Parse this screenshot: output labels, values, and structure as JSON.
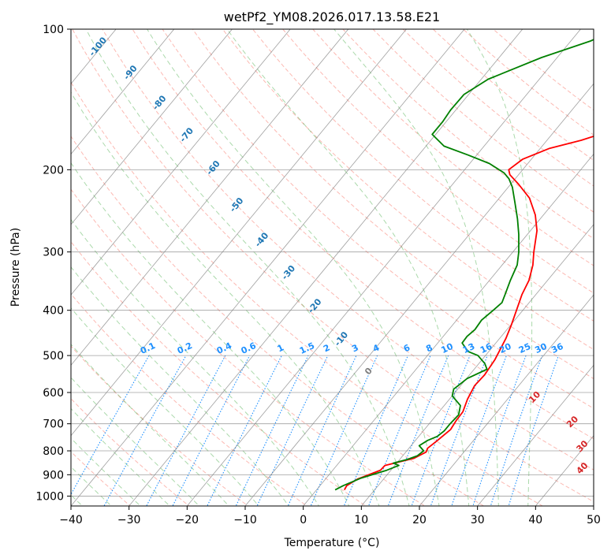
{
  "chart_data": {
    "type": "line",
    "title": "wetPf2_YM08.2026.017.13.58.E21",
    "xlabel": "Temperature (°C)",
    "ylabel": "Pressure (hPa)",
    "xlim": [
      -40,
      50
    ],
    "ylim": [
      1050,
      100
    ],
    "y_scale": "log",
    "grid": true,
    "x_ticks": [
      -40,
      -30,
      -20,
      -10,
      0,
      10,
      20,
      30,
      40,
      50
    ],
    "y_ticks": [
      100,
      200,
      300,
      400,
      500,
      600,
      700,
      800,
      900,
      1000
    ],
    "colors": {
      "temperature": "#ff0000",
      "dewpoint": "#008000",
      "dry_adiabat": "#fa8072",
      "moist_adiabat": "#2ca02c",
      "mixing_ratio": "#1e90ff",
      "isotherm": "#808080"
    },
    "series": [
      {
        "color": "#ff0000",
        "points": [
          [
            4.8,
            970
          ],
          [
            4.6,
            950
          ],
          [
            5.5,
            920
          ],
          [
            8.2,
            880
          ],
          [
            8.3,
            860
          ],
          [
            12.3,
            830
          ],
          [
            13.5,
            805
          ],
          [
            13.2,
            790
          ],
          [
            13.8,
            760
          ],
          [
            14.5,
            720
          ],
          [
            14.2,
            690
          ],
          [
            14.1,
            660
          ],
          [
            13.1,
            620
          ],
          [
            12.4,
            580
          ],
          [
            12.6,
            550
          ],
          [
            12.2,
            510
          ],
          [
            11.1,
            460
          ],
          [
            10.1,
            430
          ],
          [
            8.9,
            400
          ],
          [
            7.6,
            370
          ],
          [
            6.8,
            345
          ],
          [
            5.3,
            320
          ],
          [
            3.6,
            300
          ],
          [
            1.1,
            270
          ],
          [
            -1.4,
            250
          ],
          [
            -4.8,
            230
          ],
          [
            -8.6,
            215
          ],
          [
            -11.5,
            205
          ],
          [
            -12.4,
            200
          ],
          [
            -11.5,
            190
          ],
          [
            -8.4,
            180
          ],
          [
            -4.1,
            173
          ],
          [
            -0.3,
            165
          ],
          [
            3.8,
            155
          ],
          [
            7.8,
            145
          ],
          [
            12.9,
            135
          ],
          [
            18.2,
            123
          ],
          [
            22.1,
            115
          ],
          [
            25.7,
            109
          ],
          [
            29.5,
            103
          ],
          [
            30.7,
            100
          ]
        ]
      },
      {
        "color": "#008000",
        "points": [
          [
            3.2,
            970
          ],
          [
            4.0,
            950
          ],
          [
            6.0,
            915
          ],
          [
            9.3,
            880
          ],
          [
            10.7,
            860
          ],
          [
            9.4,
            850
          ],
          [
            11.3,
            835
          ],
          [
            12.5,
            820
          ],
          [
            12.9,
            800
          ],
          [
            11.4,
            780
          ],
          [
            12.1,
            760
          ],
          [
            13.2,
            745
          ],
          [
            13.6,
            725
          ],
          [
            13.6,
            700
          ],
          [
            13.8,
            670
          ],
          [
            12.8,
            640
          ],
          [
            10.0,
            610
          ],
          [
            9.3,
            590
          ],
          [
            10.1,
            560
          ],
          [
            12.2,
            535
          ],
          [
            11.0,
            520
          ],
          [
            8.7,
            500
          ],
          [
            6.4,
            490
          ],
          [
            4.2,
            470
          ],
          [
            4.1,
            455
          ],
          [
            4.5,
            440
          ],
          [
            4.3,
            420
          ],
          [
            4.9,
            400
          ],
          [
            5.3,
            385
          ],
          [
            4.7,
            370
          ],
          [
            3.6,
            345
          ],
          [
            2.6,
            320
          ],
          [
            1.0,
            300
          ],
          [
            -1.5,
            275
          ],
          [
            -3.9,
            255
          ],
          [
            -6.7,
            235
          ],
          [
            -9.3,
            218
          ],
          [
            -11.1,
            209
          ],
          [
            -12.8,
            203
          ],
          [
            -16.6,
            194
          ],
          [
            -21.5,
            186
          ],
          [
            -26.9,
            178
          ],
          [
            -30.6,
            168
          ],
          [
            -30.6,
            158
          ],
          [
            -30.9,
            149
          ],
          [
            -30.8,
            138
          ],
          [
            -28.8,
            128
          ],
          [
            -22.7,
            115
          ],
          [
            -16.6,
            106
          ],
          [
            -13.9,
            100
          ]
        ]
      }
    ],
    "dry_adiabat_labels": [
      "10",
      "20",
      "30",
      "40"
    ],
    "moist_adiabat_labels": [
      "-100",
      "-90",
      "-80",
      "-70",
      "-60",
      "-50",
      "-40",
      "-30",
      "-20",
      "-10",
      "0"
    ],
    "mixing_ratio_labels": [
      "0.1",
      "0.2",
      "0.4",
      "0.6",
      "1",
      "1.5",
      "2",
      "3",
      "4",
      "6",
      "8",
      "10",
      "13",
      "16",
      "20",
      "25",
      "30",
      "36"
    ]
  }
}
